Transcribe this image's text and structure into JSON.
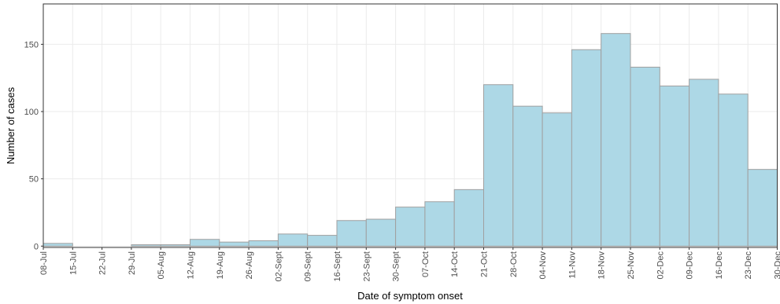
{
  "chart_data": {
    "type": "histogram",
    "xlabel": "Date of symptom onset",
    "ylabel": "Number of cases",
    "bins": [
      "08-Jul",
      "15-Jul",
      "22-Jul",
      "29-Jul",
      "05-Aug",
      "12-Aug",
      "19-Aug",
      "26-Aug",
      "02-Sept",
      "09-Sept",
      "16-Sept",
      "23-Sept",
      "30-Sept",
      "07-Oct",
      "14-Oct",
      "21-Oct",
      "28-Oct",
      "04-Nov",
      "11-Nov",
      "18-Nov",
      "25-Nov",
      "02-Dec",
      "09-Dec",
      "16-Dec",
      "23-Dec",
      "30-Dec"
    ],
    "values": [
      2,
      0,
      0,
      1,
      1,
      5,
      3,
      4,
      9,
      8,
      19,
      20,
      29,
      33,
      42,
      120,
      104,
      99,
      146,
      158,
      133,
      119,
      124,
      113,
      57
    ],
    "color": "#add8e6",
    "ylim": [
      -1,
      180
    ],
    "yticks": [
      0,
      50,
      100,
      150
    ],
    "grid": true
  }
}
